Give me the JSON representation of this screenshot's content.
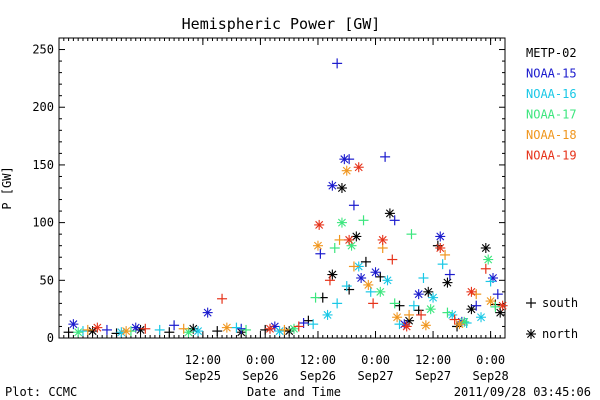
{
  "chart_data": {
    "type": "scatter",
    "title": "Hemispheric Power [GW]",
    "ylabel": "P [GW]",
    "xlabel": "Date and Time",
    "ylim": [
      0,
      260
    ],
    "xlim": [
      "2011-09-24T06:00",
      "2011-09-28T03:00"
    ],
    "yticks": [
      0,
      50,
      100,
      150,
      200,
      250
    ],
    "xticks": [
      {
        "time": "2011-09-25T12:00",
        "top": "12:00",
        "bottom": "Sep25"
      },
      {
        "time": "2011-09-26T00:00",
        "top": "0:00",
        "bottom": "Sep26"
      },
      {
        "time": "2011-09-26T12:00",
        "top": "12:00",
        "bottom": "Sep26"
      },
      {
        "time": "2011-09-27T00:00",
        "top": "0:00",
        "bottom": "Sep27"
      },
      {
        "time": "2011-09-27T12:00",
        "top": "12:00",
        "bottom": "Sep27"
      },
      {
        "time": "2011-09-28T00:00",
        "top": "0:00",
        "bottom": "Sep28"
      }
    ],
    "legend_position": "right",
    "marker_legend": [
      {
        "symbol": "+",
        "label": "south"
      },
      {
        "symbol": "*",
        "label": "north"
      }
    ],
    "series": [
      {
        "name": "METP-02",
        "color": "#000000",
        "points": [
          [
            "2011-09-24T08:00",
            5,
            "+"
          ],
          [
            "2011-09-24T13:00",
            6,
            "*"
          ],
          [
            "2011-09-24T18:00",
            4,
            "+"
          ],
          [
            "2011-09-24T23:00",
            7,
            "*"
          ],
          [
            "2011-09-25T05:00",
            5,
            "+"
          ],
          [
            "2011-09-25T10:00",
            8,
            "*"
          ],
          [
            "2011-09-25T15:00",
            6,
            "+"
          ],
          [
            "2011-09-25T20:00",
            5,
            "*"
          ],
          [
            "2011-09-26T01:00",
            7,
            "+"
          ],
          [
            "2011-09-26T06:00",
            6,
            "*"
          ],
          [
            "2011-09-26T10:00",
            15,
            "+"
          ],
          [
            "2011-09-26T13:00",
            35,
            "+"
          ],
          [
            "2011-09-26T15:00",
            55,
            "*"
          ],
          [
            "2011-09-26T17:00",
            130,
            "*"
          ],
          [
            "2011-09-26T18:30",
            42,
            "+"
          ],
          [
            "2011-09-26T20:00",
            88,
            "*"
          ],
          [
            "2011-09-26T22:00",
            66,
            "+"
          ],
          [
            "2011-09-27T01:00",
            53,
            "+"
          ],
          [
            "2011-09-27T03:00",
            108,
            "*"
          ],
          [
            "2011-09-27T05:00",
            28,
            "+"
          ],
          [
            "2011-09-27T07:00",
            15,
            "*"
          ],
          [
            "2011-09-27T09:00",
            24,
            "+"
          ],
          [
            "2011-09-27T11:00",
            40,
            "*"
          ],
          [
            "2011-09-27T13:00",
            80,
            "+"
          ],
          [
            "2011-09-27T15:00",
            48,
            "*"
          ],
          [
            "2011-09-27T17:00",
            10,
            "+"
          ],
          [
            "2011-09-27T20:00",
            25,
            "*"
          ],
          [
            "2011-09-27T23:00",
            78,
            "*"
          ],
          [
            "2011-09-28T01:00",
            29,
            "+"
          ],
          [
            "2011-09-28T02:00",
            22,
            "*"
          ]
        ]
      },
      {
        "name": "NOAA-15",
        "color": "#1a1acd",
        "points": [
          [
            "2011-09-24T09:00",
            12,
            "*"
          ],
          [
            "2011-09-24T16:00",
            7,
            "+"
          ],
          [
            "2011-09-24T22:00",
            9,
            "*"
          ],
          [
            "2011-09-25T06:00",
            11,
            "+"
          ],
          [
            "2011-09-25T13:00",
            22,
            "*"
          ],
          [
            "2011-09-25T20:00",
            8,
            "+"
          ],
          [
            "2011-09-26T03:00",
            10,
            "*"
          ],
          [
            "2011-09-26T09:00",
            13,
            "+"
          ],
          [
            "2011-09-26T12:30",
            73,
            "+"
          ],
          [
            "2011-09-26T15:00",
            132,
            "*"
          ],
          [
            "2011-09-26T16:00",
            238,
            "+"
          ],
          [
            "2011-09-26T17:30",
            155,
            "*"
          ],
          [
            "2011-09-26T18:30",
            155,
            "+"
          ],
          [
            "2011-09-26T19:30",
            115,
            "+"
          ],
          [
            "2011-09-26T21:00",
            52,
            "*"
          ],
          [
            "2011-09-27T00:00",
            57,
            "*"
          ],
          [
            "2011-09-27T02:00",
            157,
            "+"
          ],
          [
            "2011-09-27T04:00",
            102,
            "+"
          ],
          [
            "2011-09-27T06:00",
            12,
            "*"
          ],
          [
            "2011-09-27T09:00",
            38,
            "*"
          ],
          [
            "2011-09-27T13:30",
            88,
            "*"
          ],
          [
            "2011-09-27T15:30",
            55,
            "+"
          ],
          [
            "2011-09-27T18:00",
            14,
            "*"
          ],
          [
            "2011-09-27T21:00",
            28,
            "+"
          ],
          [
            "2011-09-28T00:30",
            52,
            "*"
          ],
          [
            "2011-09-28T01:30",
            38,
            "+"
          ]
        ]
      },
      {
        "name": "NOAA-16",
        "color": "#19c8e6",
        "points": [
          [
            "2011-09-24T11:00",
            6,
            "+"
          ],
          [
            "2011-09-24T19:00",
            5,
            "*"
          ],
          [
            "2011-09-25T03:00",
            7,
            "+"
          ],
          [
            "2011-09-25T11:00",
            6,
            "*"
          ],
          [
            "2011-09-25T19:00",
            9,
            "+"
          ],
          [
            "2011-09-26T04:00",
            6,
            "*"
          ],
          [
            "2011-09-26T11:00",
            12,
            "+"
          ],
          [
            "2011-09-26T14:00",
            20,
            "*"
          ],
          [
            "2011-09-26T16:00",
            30,
            "+"
          ],
          [
            "2011-09-26T18:00",
            45,
            "+"
          ],
          [
            "2011-09-26T20:30",
            62,
            "*"
          ],
          [
            "2011-09-26T23:00",
            40,
            "+"
          ],
          [
            "2011-09-27T02:30",
            50,
            "*"
          ],
          [
            "2011-09-27T05:00",
            12,
            "+"
          ],
          [
            "2011-09-27T08:00",
            28,
            "+"
          ],
          [
            "2011-09-27T10:00",
            52,
            "+"
          ],
          [
            "2011-09-27T12:00",
            35,
            "*"
          ],
          [
            "2011-09-27T14:00",
            64,
            "+"
          ],
          [
            "2011-09-27T16:00",
            20,
            "*"
          ],
          [
            "2011-09-27T19:00",
            13,
            "+"
          ],
          [
            "2011-09-27T22:00",
            18,
            "*"
          ],
          [
            "2011-09-28T00:00",
            49,
            "+"
          ]
        ]
      },
      {
        "name": "NOAA-17",
        "color": "#3ce67e",
        "points": [
          [
            "2011-09-24T10:00",
            5,
            "*"
          ],
          [
            "2011-09-24T21:00",
            6,
            "+"
          ],
          [
            "2011-09-25T09:00",
            5,
            "*"
          ],
          [
            "2011-09-25T21:00",
            7,
            "+"
          ],
          [
            "2011-09-26T07:00",
            8,
            "*"
          ],
          [
            "2011-09-26T11:30",
            35,
            "+"
          ],
          [
            "2011-09-26T15:30",
            78,
            "+"
          ],
          [
            "2011-09-26T17:00",
            100,
            "*"
          ],
          [
            "2011-09-26T19:00",
            80,
            "*"
          ],
          [
            "2011-09-26T21:30",
            102,
            "+"
          ],
          [
            "2011-09-27T01:00",
            40,
            "*"
          ],
          [
            "2011-09-27T04:00",
            30,
            "+"
          ],
          [
            "2011-09-27T07:30",
            90,
            "+"
          ],
          [
            "2011-09-27T11:30",
            25,
            "*"
          ],
          [
            "2011-09-27T15:00",
            22,
            "+"
          ],
          [
            "2011-09-27T18:30",
            14,
            "*"
          ],
          [
            "2011-09-27T23:30",
            68,
            "*"
          ],
          [
            "2011-09-28T01:00",
            27,
            "+"
          ]
        ]
      },
      {
        "name": "NOAA-18",
        "color": "#f0961e",
        "points": [
          [
            "2011-09-24T12:00",
            7,
            "+"
          ],
          [
            "2011-09-24T20:00",
            6,
            "*"
          ],
          [
            "2011-09-25T08:00",
            8,
            "+"
          ],
          [
            "2011-09-25T17:00",
            9,
            "*"
          ],
          [
            "2011-09-26T05:00",
            7,
            "+"
          ],
          [
            "2011-09-26T12:00",
            80,
            "*"
          ],
          [
            "2011-09-26T16:30",
            85,
            "+"
          ],
          [
            "2011-09-26T18:00",
            145,
            "*"
          ],
          [
            "2011-09-26T19:30",
            62,
            "+"
          ],
          [
            "2011-09-26T22:30",
            46,
            "*"
          ],
          [
            "2011-09-27T01:30",
            78,
            "+"
          ],
          [
            "2011-09-27T04:30",
            18,
            "*"
          ],
          [
            "2011-09-27T07:00",
            20,
            "+"
          ],
          [
            "2011-09-27T10:30",
            11,
            "*"
          ],
          [
            "2011-09-27T14:30",
            72,
            "+"
          ],
          [
            "2011-09-27T17:30",
            12,
            "*"
          ],
          [
            "2011-09-27T21:00",
            38,
            "+"
          ],
          [
            "2011-09-28T00:00",
            32,
            "*"
          ]
        ]
      },
      {
        "name": "NOAA-19",
        "color": "#e63219",
        "points": [
          [
            "2011-09-24T14:00",
            9,
            "*"
          ],
          [
            "2011-09-25T00:00",
            8,
            "+"
          ],
          [
            "2011-09-25T16:00",
            34,
            "+"
          ],
          [
            "2011-09-26T02:00",
            8,
            "*"
          ],
          [
            "2011-09-26T08:00",
            10,
            "+"
          ],
          [
            "2011-09-26T12:15",
            98,
            "*"
          ],
          [
            "2011-09-26T14:30",
            50,
            "+"
          ],
          [
            "2011-09-26T18:30",
            85,
            "*"
          ],
          [
            "2011-09-26T20:30",
            148,
            "*"
          ],
          [
            "2011-09-26T23:30",
            30,
            "+"
          ],
          [
            "2011-09-27T01:30",
            85,
            "*"
          ],
          [
            "2011-09-27T03:30",
            68,
            "+"
          ],
          [
            "2011-09-27T06:30",
            10,
            "*"
          ],
          [
            "2011-09-27T09:30",
            20,
            "+"
          ],
          [
            "2011-09-27T13:30",
            78,
            "*"
          ],
          [
            "2011-09-27T16:30",
            16,
            "+"
          ],
          [
            "2011-09-27T20:00",
            40,
            "*"
          ],
          [
            "2011-09-27T23:00",
            60,
            "+"
          ],
          [
            "2011-09-28T02:30",
            28,
            "*"
          ]
        ]
      }
    ]
  },
  "footer": {
    "left": "Plot: CCMC",
    "right": "2011/09/28 03:45:06"
  }
}
